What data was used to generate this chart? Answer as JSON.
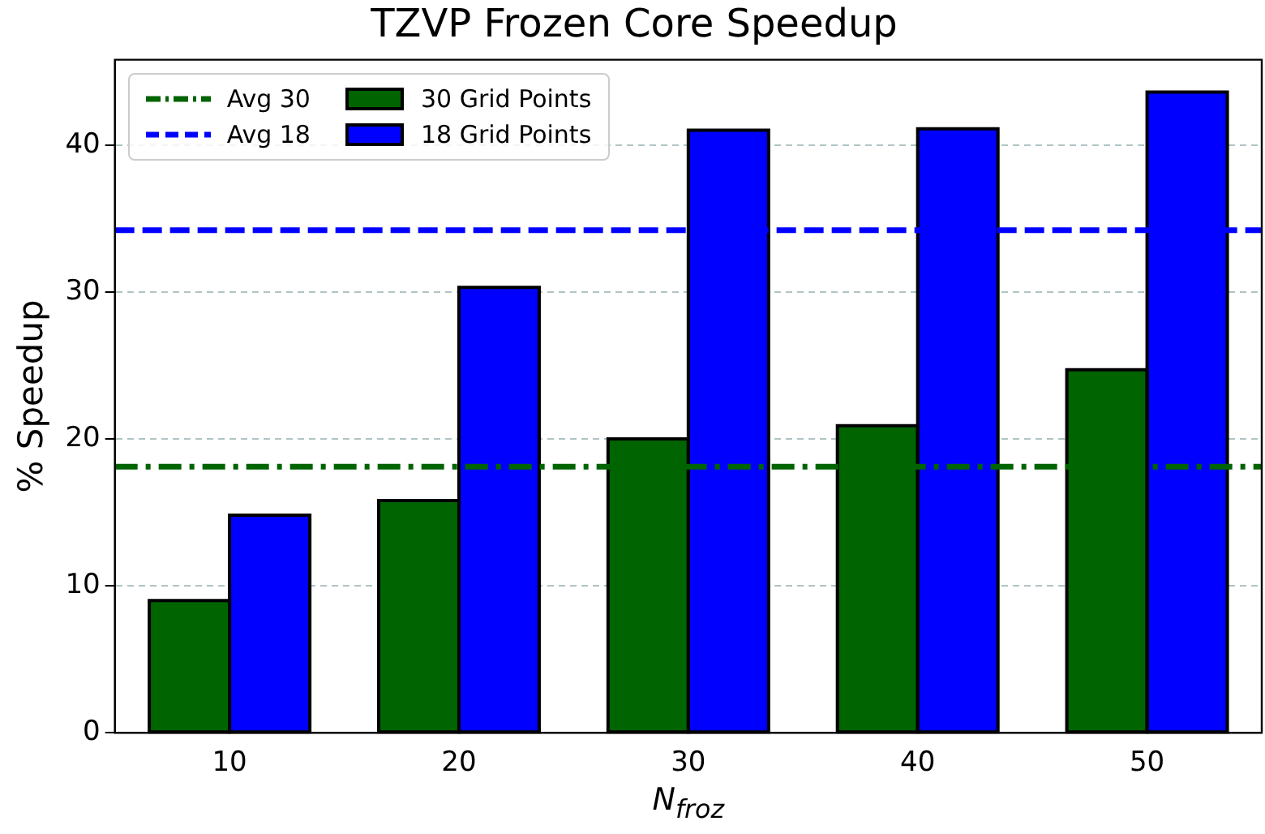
{
  "chart_data": {
    "type": "bar",
    "title": "TZVP Frozen Core Speedup",
    "xlabel": "N$_{froz}$",
    "ylabel": "% Speedup",
    "categories": [
      "10",
      "20",
      "30",
      "40",
      "50"
    ],
    "series": [
      {
        "name": "30 Grid Points",
        "color": "#006400",
        "values": [
          9.0,
          15.8,
          20.0,
          20.9,
          24.7
        ]
      },
      {
        "name": "18 Grid Points",
        "color": "#0000ff",
        "values": [
          14.8,
          30.3,
          41.0,
          41.1,
          43.6
        ]
      }
    ],
    "ref_lines": [
      {
        "axis": "y",
        "value": 18.1,
        "label": "Avg 30",
        "color": "#006400",
        "line_style": "dashdot"
      },
      {
        "axis": "y",
        "value": 34.2,
        "label": "Avg 18",
        "color": "#0000ff",
        "line_style": "dashed"
      }
    ],
    "ylim": [
      0,
      45.8
    ],
    "yticks": [
      0,
      10,
      20,
      30,
      40
    ],
    "grid": "y",
    "legend": "top left"
  }
}
